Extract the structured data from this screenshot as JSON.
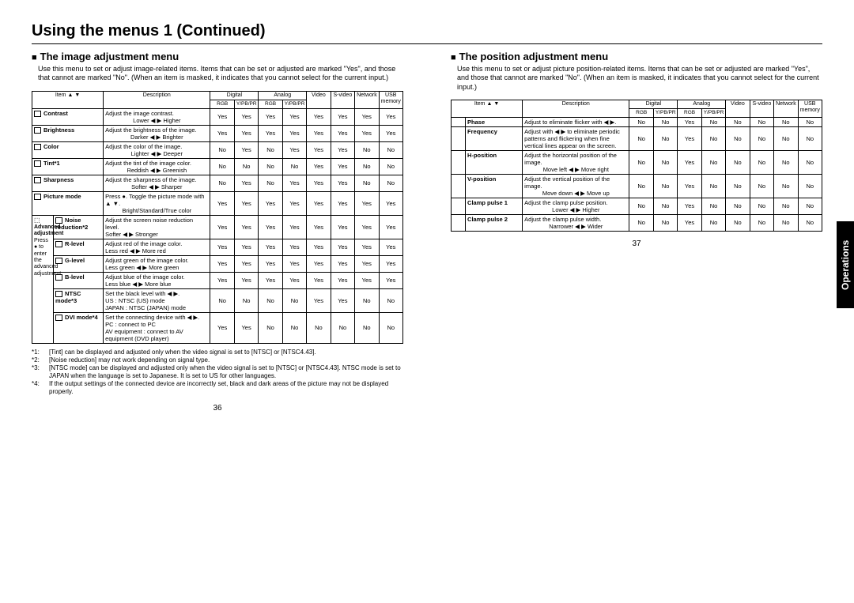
{
  "page": {
    "main_title": "Using the menus 1 (Continued)",
    "side_tab": "Operations",
    "page_left": "36",
    "page_right": "37"
  },
  "left": {
    "title": "The image adjustment menu",
    "intro": "Use this menu to set or adjust image-related items. Items that can be set or adjusted are marked \"Yes\", and those that cannot are marked \"No\". (When an item is masked, it indicates that you cannot select for the current input.)",
    "headers": {
      "item": "Item ▲ ▼",
      "desc": "Description",
      "digital": "Digital",
      "analog": "Analog",
      "video": "Video",
      "svideo": "S-video",
      "network": "Network",
      "usb": "USB memory",
      "rgb": "RGB",
      "ypbpr": "Y/PB/PR"
    },
    "rows": [
      {
        "item": "Contrast",
        "desc": "Adjust the image contrast.",
        "d2": "Lower ◀ ▶ Higher",
        "yn": [
          "Yes",
          "Yes",
          "Yes",
          "Yes",
          "Yes",
          "Yes",
          "Yes",
          "Yes"
        ]
      },
      {
        "item": "Brightness",
        "desc": "Adjust the brightness of the image.",
        "d2": "Darker ◀ ▶ Brighter",
        "yn": [
          "Yes",
          "Yes",
          "Yes",
          "Yes",
          "Yes",
          "Yes",
          "Yes",
          "Yes"
        ]
      },
      {
        "item": "Color",
        "desc": "Adjust the color of the image.",
        "d2": "Lighter ◀ ▶ Deeper",
        "yn": [
          "No",
          "Yes",
          "No",
          "Yes",
          "Yes",
          "Yes",
          "No",
          "No"
        ]
      },
      {
        "item": "Tint*1",
        "desc": "Adjust the tint of the image color.",
        "d2": "Reddish ◀ ▶ Greenish",
        "yn": [
          "No",
          "No",
          "No",
          "No",
          "Yes",
          "Yes",
          "No",
          "No"
        ]
      },
      {
        "item": "Sharpness",
        "desc": "Adjust the sharpness of the image.",
        "d2": "Softer ◀ ▶ Sharper",
        "yn": [
          "No",
          "Yes",
          "No",
          "Yes",
          "Yes",
          "Yes",
          "No",
          "No"
        ]
      },
      {
        "item": "Picture mode",
        "desc": "Press ●. Toggle the picture mode with ▲ ▼.",
        "d2": "Bright/Standard/True color",
        "yn": [
          "Yes",
          "Yes",
          "Yes",
          "Yes",
          "Yes",
          "Yes",
          "Yes",
          "Yes"
        ]
      }
    ],
    "adv_label": "Advanced adjustment",
    "adv_sub": "Press ● to enter the advanced adjustment",
    "adv_rows": [
      {
        "item": "Noise reduction*2",
        "desc": "Adjust the screen noise reduction level.",
        "d2": "Softer ◀ ▶ Stronger",
        "yn": [
          "Yes",
          "Yes",
          "Yes",
          "Yes",
          "Yes",
          "Yes",
          "Yes",
          "Yes"
        ]
      },
      {
        "item": "R-level",
        "desc": "Adjust red of the image color.",
        "d2": "Less red ◀ ▶ More red",
        "yn": [
          "Yes",
          "Yes",
          "Yes",
          "Yes",
          "Yes",
          "Yes",
          "Yes",
          "Yes"
        ]
      },
      {
        "item": "G-level",
        "desc": "Adjust green of the image color.",
        "d2": "Less green ◀ ▶ More green",
        "yn": [
          "Yes",
          "Yes",
          "Yes",
          "Yes",
          "Yes",
          "Yes",
          "Yes",
          "Yes"
        ]
      },
      {
        "item": "B-level",
        "desc": "Adjust blue of the image color.",
        "d2": "Less blue ◀ ▶ More blue",
        "yn": [
          "Yes",
          "Yes",
          "Yes",
          "Yes",
          "Yes",
          "Yes",
          "Yes",
          "Yes"
        ]
      },
      {
        "item": "NTSC mode*3",
        "desc": "Set the black level with ◀ ▶.",
        "d2": "US       : NTSC (US) mode",
        "d3": "JAPAN : NTSC (JAPAN) mode",
        "yn": [
          "No",
          "No",
          "No",
          "No",
          "Yes",
          "Yes",
          "No",
          "No"
        ]
      },
      {
        "item": "DVI mode*4",
        "desc": "Set the connecting device with ◀ ▶.",
        "d2": "PC                     : connect to PC",
        "d3": "AV equipment : connect to AV equipment (DVD player)",
        "yn": [
          "Yes",
          "Yes",
          "No",
          "No",
          "No",
          "No",
          "No",
          "No"
        ]
      }
    ],
    "footnotes": [
      "[Tint] can be displayed and adjusted only when the video signal is set to [NTSC] or [NTSC4.43].",
      "[Noise reduction] may not work depending on signal type.",
      "[NTSC mode] can be displayed and adjusted only when the video signal is set to [NTSC] or [NTSC4.43]. NTSC mode is set to JAPAN when the language is set to Japanese. It is set to US for other languages.",
      "If the output settings of the connected device are incorrectly set, black and dark areas of the picture may not be displayed properly."
    ]
  },
  "right": {
    "title": "The position adjustment menu",
    "intro": "Use this menu to set or adjust picture position-related items. Items that can be set or adjusted are marked \"Yes\", and those that cannot are marked \"No\". (When an item is masked, it indicates that you cannot select for the current input.)",
    "rows": [
      {
        "item": "Phase",
        "desc": "Adjust to eliminate flicker with ◀ ▶.",
        "d2": "",
        "yn": [
          "No",
          "No",
          "Yes",
          "No",
          "No",
          "No",
          "No",
          "No"
        ]
      },
      {
        "item": "Frequency",
        "desc": "Adjust with ◀ ▶ to eliminate periodic patterns and flickering when fine vertical lines appear on the screen.",
        "d2": "",
        "yn": [
          "No",
          "No",
          "Yes",
          "No",
          "No",
          "No",
          "No",
          "No"
        ]
      },
      {
        "item": "H-position",
        "desc": "Adjust the horizontal position of the image.",
        "d2": "Move left ◀ ▶ Move right",
        "yn": [
          "No",
          "No",
          "Yes",
          "No",
          "No",
          "No",
          "No",
          "No"
        ]
      },
      {
        "item": "V-position",
        "desc": "Adjust the vertical position of the image.",
        "d2": "Move down ◀ ▶ Move up",
        "yn": [
          "No",
          "No",
          "Yes",
          "No",
          "No",
          "No",
          "No",
          "No"
        ]
      },
      {
        "item": "Clamp pulse 1",
        "desc": "Adjust the clamp pulse position.",
        "d2": "Lower ◀ ▶ Higher",
        "yn": [
          "No",
          "No",
          "Yes",
          "No",
          "No",
          "No",
          "No",
          "No"
        ]
      },
      {
        "item": "Clamp pulse 2",
        "desc": "Adjust the clamp pulse width.",
        "d2": "Narrower ◀ ▶ Wider",
        "yn": [
          "No",
          "No",
          "Yes",
          "No",
          "No",
          "No",
          "No",
          "No"
        ]
      }
    ]
  }
}
